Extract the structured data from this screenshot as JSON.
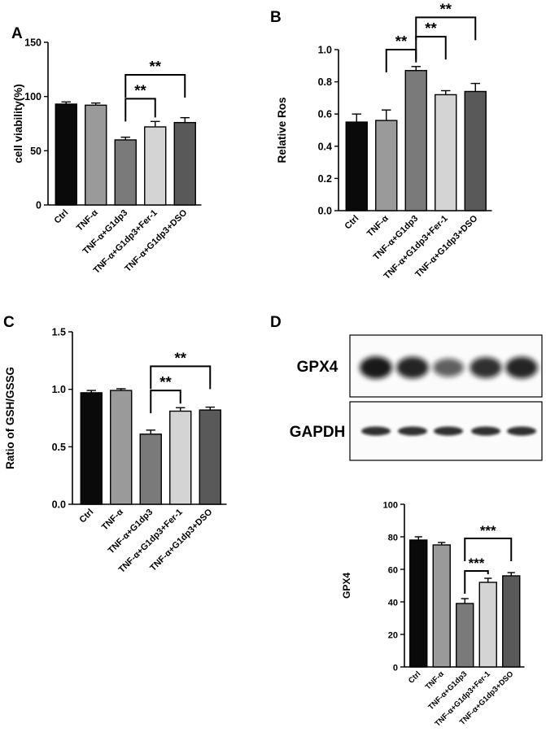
{
  "chart_data": [
    {
      "panel": "A",
      "type": "bar",
      "categories": [
        "Ctrl",
        "TNF-α",
        "TNF-α+G1dp3",
        "TNF-α+G1dp3+Fer-1",
        "TNF-α+G1dp3+DSO"
      ],
      "values": [
        93,
        92,
        60,
        72,
        76
      ],
      "errors": [
        2,
        2,
        2.5,
        5,
        4.5
      ],
      "ylabel": "cell viability(%)",
      "ylim": [
        0,
        150
      ],
      "yticks": [
        0,
        50,
        100,
        150
      ],
      "significance": [
        {
          "from": 2,
          "to": 3,
          "label": "**",
          "level": 98
        },
        {
          "from": 2,
          "to": 4,
          "label": "**",
          "level": 120
        }
      ]
    },
    {
      "panel": "B",
      "type": "bar",
      "categories": [
        "Ctrl",
        "TNF-α",
        "TNF-α+G1dp3",
        "TNF-α+G1dp3+Fer-1",
        "TNF-α+G1dp3+DSO"
      ],
      "values": [
        0.55,
        0.56,
        0.87,
        0.72,
        0.74
      ],
      "errors": [
        0.05,
        0.065,
        0.025,
        0.025,
        0.05
      ],
      "ylabel": "Relative Ros",
      "ylim": [
        0,
        1.0
      ],
      "yticks": [
        0.0,
        0.2,
        0.4,
        0.6,
        0.8,
        1.0
      ],
      "significance": [
        {
          "from": 1,
          "to": 2,
          "label": "**",
          "level": 1.0
        },
        {
          "from": 2,
          "to": 3,
          "label": "**",
          "level": 1.08
        },
        {
          "from": 2,
          "to": 4,
          "label": "**",
          "level": 1.2
        }
      ]
    },
    {
      "panel": "C",
      "type": "bar",
      "categories": [
        "Ctrl",
        "TNF-α",
        "TNF-α+G1dp3",
        "TNF-α+G1dp3+Fer-1",
        "TNF-α+G1dp3+DSO"
      ],
      "values": [
        0.97,
        0.99,
        0.61,
        0.81,
        0.82
      ],
      "errors": [
        0.02,
        0.015,
        0.035,
        0.03,
        0.025
      ],
      "ylabel": "Ratio of GSH/GSSG",
      "ylim": [
        0,
        1.5
      ],
      "yticks": [
        0.0,
        0.5,
        1.0,
        1.5
      ],
      "significance": [
        {
          "from": 2,
          "to": 3,
          "label": "**",
          "level": 0.99
        },
        {
          "from": 2,
          "to": 4,
          "label": "**",
          "level": 1.2
        }
      ]
    },
    {
      "panel": "D",
      "type": "bar",
      "categories": [
        "Ctrl",
        "TNF-α",
        "TNF-α+G1dp3",
        "TNF-α+G1dp3+Fer-1",
        "TNF-α+G1dp3+DSO"
      ],
      "values": [
        78,
        75,
        39,
        52,
        56
      ],
      "errors": [
        2,
        1.5,
        3,
        2.5,
        2
      ],
      "ylabel": "GPX4",
      "ylim": [
        0,
        100
      ],
      "yticks": [
        0,
        20,
        40,
        60,
        80,
        100
      ],
      "significance": [
        {
          "from": 2,
          "to": 3,
          "label": "***",
          "level": 59
        },
        {
          "from": 2,
          "to": 4,
          "label": "***",
          "level": 79
        }
      ]
    }
  ],
  "western_blot": {
    "panel": "D",
    "bands": [
      {
        "label": "GPX4",
        "intensity": [
          0.95,
          0.9,
          0.65,
          0.85,
          0.9
        ]
      },
      {
        "label": "GAPDH",
        "intensity": [
          0.85,
          0.85,
          0.85,
          0.85,
          0.85
        ]
      }
    ]
  },
  "colors": {
    "bars": [
      "#0a0a0a",
      "#9a9a9a",
      "#7a7a7a",
      "#d4d4d4",
      "#595959"
    ],
    "axis": "#000000"
  }
}
